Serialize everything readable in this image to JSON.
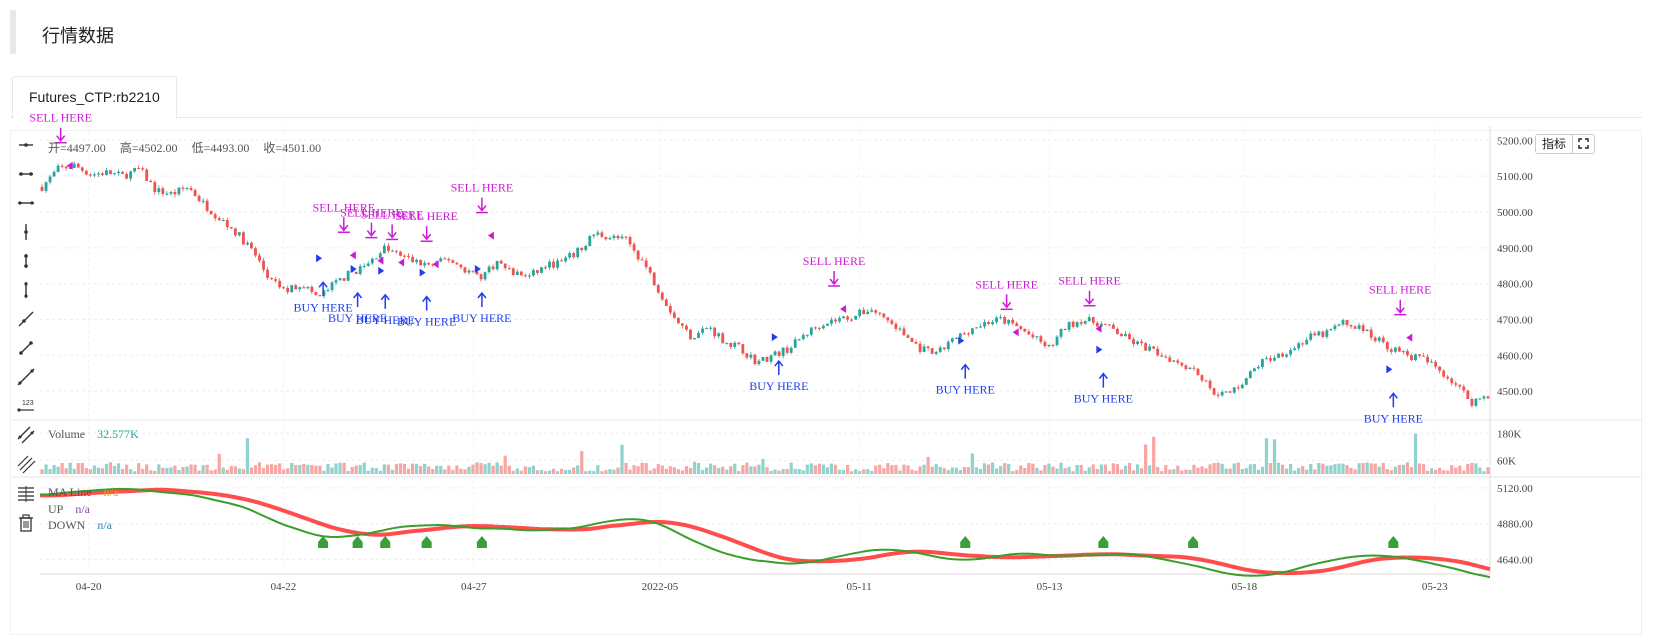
{
  "header": {
    "title": "行情数据"
  },
  "tabs": [
    {
      "label": "Futures_CTP:rb2210"
    }
  ],
  "toolbar": {
    "icons": [
      "horizontal-ray-icon",
      "horizontal-segment-icon",
      "horizontal-line-icon",
      "vertical-ray-icon",
      "vertical-segment-icon",
      "vertical-line-icon",
      "trend-ray-icon",
      "trend-segment-icon",
      "trend-line-icon",
      "price-label-icon",
      "parallel-lines-icon",
      "parallel-channel-icon",
      "layers-icon",
      "trash-icon"
    ]
  },
  "chart_controls": {
    "indicator_label": "指标",
    "fullscreen": "fullscreen-icon"
  },
  "ohlc": {
    "open": "开=4497.00",
    "high": "高=4502.00",
    "low": "低=4493.00",
    "close": "收=4501.00"
  },
  "volume_pane": {
    "name": "Volume",
    "value": "32.577K"
  },
  "ma_pane": {
    "legend": [
      {
        "name": "MA Line",
        "value": "n/a"
      },
      {
        "name": "UP",
        "value": "n/a"
      },
      {
        "name": "DOWN",
        "value": "n/a"
      }
    ]
  },
  "colors": {
    "up": "#26a69a",
    "down": "#ef5350",
    "buy": "#1e3ef0",
    "sell": "#cc1bd6",
    "ma_up": "#3a9e2a",
    "ma_down": "#ff4d4d"
  },
  "chart_data": {
    "type": "candlestick",
    "main": {
      "y_ticks": [
        5200,
        5100,
        5000,
        4900,
        4800,
        4700,
        4600,
        4500
      ],
      "y_tick_labels": [
        "5200.00",
        "5100.00",
        "5000.00",
        "4900.00",
        "4800.00",
        "4700.00",
        "4600.00",
        "4500.00"
      ],
      "ylim": [
        4425,
        5240
      ],
      "x_tick_labels": [
        "04-20",
        "04-22",
        "04-27",
        "2022-05",
        "05-11",
        "05-13",
        "05-18",
        "05-23"
      ],
      "price_path": [
        5070,
        5120,
        5130,
        5105,
        5110,
        5100,
        5120,
        5060,
        5050,
        5070,
        5020,
        4980,
        4940,
        4890,
        4810,
        4780,
        4800,
        4760,
        4800,
        4830,
        4850,
        4900,
        4880,
        4860,
        4850,
        4870,
        4840,
        4820,
        4860,
        4830,
        4820,
        4850,
        4860,
        4890,
        4940,
        4930,
        4920,
        4860,
        4780,
        4700,
        4650,
        4680,
        4640,
        4620,
        4580,
        4600,
        4620,
        4660,
        4690,
        4700,
        4710,
        4730,
        4700,
        4660,
        4620,
        4600,
        4640,
        4670,
        4690,
        4700,
        4680,
        4650,
        4620,
        4680,
        4700,
        4690,
        4670,
        4640,
        4620,
        4600,
        4580,
        4560,
        4500,
        4490,
        4530,
        4580,
        4600,
        4620,
        4650,
        4660,
        4690,
        4680,
        4650,
        4620,
        4600,
        4590,
        4560,
        4520,
        4470,
        4490
      ]
    },
    "volume": {
      "y_ticks": [
        180000,
        60000
      ],
      "y_tick_labels": [
        "180K",
        "60K"
      ],
      "ylim": [
        0,
        230000
      ]
    },
    "ma": {
      "y_ticks": [
        5120,
        4880,
        4640
      ],
      "y_tick_labels": [
        "5120.00",
        "4880.00",
        "4640.00"
      ],
      "ylim": [
        4555,
        5180
      ],
      "up_markers": [
        4.1,
        4.6,
        5.0,
        5.6,
        6.4,
        13.4,
        15.4,
        16.7,
        19.6
      ]
    },
    "signals": [
      {
        "type": "sell",
        "label": "SELL HERE",
        "x": 0.3,
        "y": 5185
      },
      {
        "type": "sell",
        "label": "SELL HERE",
        "x": 4.4,
        "y": 4935
      },
      {
        "type": "sell",
        "label": "SELL HERE",
        "x": 4.8,
        "y": 4920
      },
      {
        "type": "sell",
        "label": "SELL HERE",
        "x": 5.1,
        "y": 4915
      },
      {
        "type": "sell",
        "label": "SELL HERE",
        "x": 5.6,
        "y": 4910
      },
      {
        "type": "sell",
        "label": "SELL HERE",
        "x": 6.4,
        "y": 4990
      },
      {
        "type": "sell",
        "label": "SELL HERE",
        "x": 11.5,
        "y": 4785
      },
      {
        "type": "sell",
        "label": "SELL HERE",
        "x": 14.0,
        "y": 4720
      },
      {
        "type": "sell",
        "label": "SELL HERE",
        "x": 15.2,
        "y": 4730
      },
      {
        "type": "sell",
        "label": "SELL HERE",
        "x": 19.7,
        "y": 4705
      },
      {
        "type": "buy",
        "label": "BUY HERE",
        "x": 4.1,
        "y": 4815
      },
      {
        "type": "buy",
        "label": "BUY HERE",
        "x": 4.6,
        "y": 4785
      },
      {
        "type": "buy",
        "label": "BUY HERE",
        "x": 5.0,
        "y": 4780
      },
      {
        "type": "buy",
        "label": "BUY HERE",
        "x": 5.6,
        "y": 4775
      },
      {
        "type": "buy",
        "label": "BUY HERE",
        "x": 6.4,
        "y": 4785
      },
      {
        "type": "buy",
        "label": "BUY HERE",
        "x": 10.7,
        "y": 4595
      },
      {
        "type": "buy",
        "label": "BUY HERE",
        "x": 13.4,
        "y": 4585
      },
      {
        "type": "buy",
        "label": "BUY HERE",
        "x": 15.4,
        "y": 4560
      },
      {
        "type": "buy",
        "label": "BUY HERE",
        "x": 19.6,
        "y": 4505
      }
    ]
  }
}
